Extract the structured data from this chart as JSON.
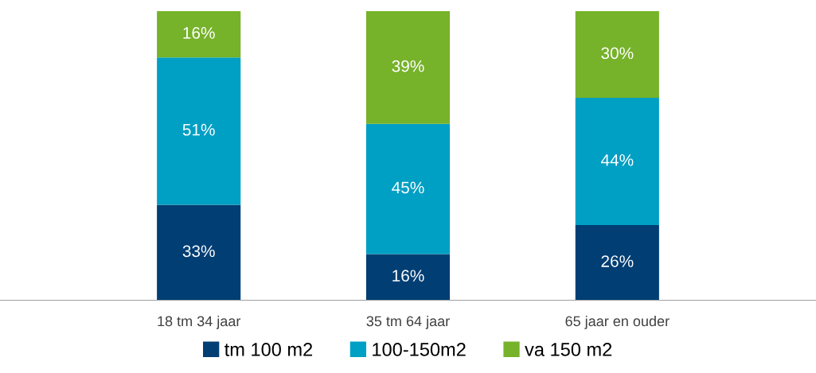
{
  "chart_data": {
    "type": "bar",
    "stacked": true,
    "categories": [
      "18 tm 34 jaar",
      "35 tm 64 jaar",
      "65 jaar en ouder"
    ],
    "series": [
      {
        "name": "tm 100 m2",
        "color": "#003e74",
        "values": [
          33,
          16,
          26
        ],
        "value_labels": [
          "33%",
          "16%",
          "26%"
        ]
      },
      {
        "name": "100-150m2",
        "color": "#009fc4",
        "values": [
          51,
          45,
          44
        ],
        "value_labels": [
          "51%",
          "45%",
          "44%"
        ]
      },
      {
        "name": "va 150 m2",
        "color": "#76b22a",
        "values": [
          16,
          39,
          30
        ],
        "value_labels": [
          "16%",
          "39%",
          "30%"
        ]
      }
    ],
    "grid": false,
    "legend": "bottom"
  }
}
